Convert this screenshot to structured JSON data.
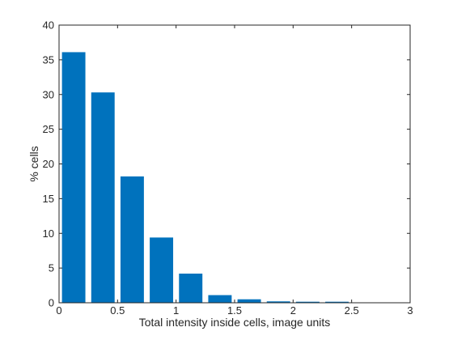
{
  "chart_data": {
    "type": "bar",
    "xlabel": "Total intensity inside cells, image units",
    "ylabel": "% cells",
    "xlim": [
      0,
      3
    ],
    "ylim": [
      0,
      40
    ],
    "xticks": [
      0,
      0.5,
      1,
      1.5,
      2,
      2.5,
      3
    ],
    "xtick_labels": [
      "0",
      "0.5",
      "1",
      "1.5",
      "2",
      "2.5",
      "3"
    ],
    "yticks": [
      0,
      5,
      10,
      15,
      20,
      25,
      30,
      35,
      40
    ],
    "ytick_labels": [
      "0",
      "5",
      "10",
      "15",
      "20",
      "25",
      "30",
      "35",
      "40"
    ],
    "bin_width": 0.25,
    "bar_centers": [
      0.125,
      0.375,
      0.625,
      0.875,
      1.125,
      1.375,
      1.625,
      1.875,
      2.125,
      2.375,
      2.625
    ],
    "values": [
      36.1,
      30.3,
      18.2,
      9.4,
      4.2,
      1.1,
      0.5,
      0.2,
      0.15,
      0.15,
      0.05
    ],
    "bar_color": "#0072bd",
    "grid": false,
    "box": true
  }
}
